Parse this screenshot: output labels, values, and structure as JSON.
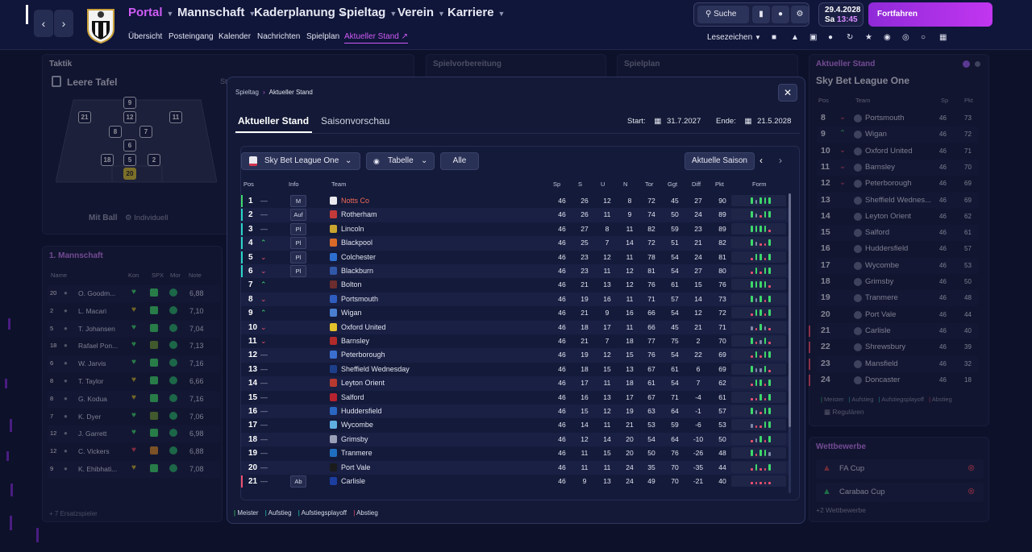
{
  "topbar": {
    "menu": [
      "Portal",
      "Mannschaft",
      "Kaderplanung",
      "Spieltag",
      "Verein",
      "Karriere"
    ],
    "sub": [
      "Übersicht",
      "Posteingang",
      "Kalender",
      "Nachrichten",
      "Spielplan",
      "Aktueller Stand"
    ],
    "search": "Suche",
    "date": "29.4.2028",
    "day": "Sa",
    "time": "13:45",
    "continue": "Fortfahren",
    "bookmarks": "Lesezeichen",
    "icons": [
      "chat-icon",
      "shirt-icon",
      "clipboard-icon",
      "team-icon",
      "refresh-icon",
      "trophy-icon",
      "pawprint-icon",
      "target-icon",
      "football-icon",
      "calendar-grid-icon"
    ]
  },
  "tactics": {
    "header": "Taktik",
    "subtitle": "Leere Tafel",
    "st": "St",
    "ball": "Mit Ball",
    "style": "Individuell",
    "formation": [
      "9",
      "21",
      "12",
      "11",
      "8",
      "7",
      "6",
      "18",
      "5",
      "2",
      "20"
    ]
  },
  "prep": {
    "header": "Spielvorbereitung"
  },
  "schedule": {
    "header": "Spielplan"
  },
  "squad": {
    "header": "1. Mannschaft",
    "cols": [
      "Name",
      "Kon",
      "SPX",
      "Mor",
      "Note"
    ],
    "more": "+ 7 Ersatzspieler",
    "players": [
      {
        "no": "20",
        "name": "O. Goodm...",
        "rating": "6,88"
      },
      {
        "no": "2",
        "name": "L. Macari",
        "rating": "7,10"
      },
      {
        "no": "5",
        "name": "T. Johansen",
        "rating": "7,04"
      },
      {
        "no": "18",
        "name": "Rafael Pon...",
        "rating": "7,13"
      },
      {
        "no": "6",
        "name": "W. Jarvis",
        "rating": "7,16"
      },
      {
        "no": "8",
        "name": "T. Taylor",
        "rating": "6,66"
      },
      {
        "no": "8",
        "name": "G. Kodua",
        "rating": "7,16"
      },
      {
        "no": "7",
        "name": "K. Dyer",
        "rating": "7,06"
      },
      {
        "no": "12",
        "name": "J. Garrett",
        "rating": "6,98"
      },
      {
        "no": "12",
        "name": "C. Vickers",
        "rating": "6,88"
      },
      {
        "no": "9",
        "name": "K. Ehibhati...",
        "rating": "7,08"
      }
    ]
  },
  "modal": {
    "breadcrumb": [
      "Spieltag",
      "Aktueller Stand"
    ],
    "tabs": [
      "Aktueller Stand",
      "Saisonvorschau"
    ],
    "start_label": "Start:",
    "start": "31.7.2027",
    "end_label": "Ende:",
    "end": "21.5.2028",
    "league": "Sky Bet League One",
    "view": "Tabelle",
    "filter": "Alle",
    "season": "Aktuelle Saison",
    "cols": [
      "Pos",
      "Info",
      "Team",
      "Sp",
      "S",
      "U",
      "N",
      "Tor",
      "Ggt",
      "Diff",
      "Pkt",
      "Form"
    ],
    "legend": [
      "Meister",
      "Aufstieg",
      "Aufstiegsplayoff",
      "Abstieg"
    ]
  },
  "table": [
    {
      "pos": "1",
      "info": "M",
      "team": "Notts Co",
      "sp": "46",
      "s": "26",
      "u": "12",
      "n": "8",
      "tor": "72",
      "ggt": "45",
      "diff": "27",
      "pkt": "90",
      "trend": "same",
      "zone": "meister",
      "form": "WDWWW"
    },
    {
      "pos": "2",
      "info": "Auf",
      "team": "Rotherham",
      "sp": "46",
      "s": "26",
      "u": "11",
      "n": "9",
      "tor": "74",
      "ggt": "50",
      "diff": "24",
      "pkt": "89",
      "trend": "same",
      "zone": "aufstieg",
      "form": "WDLWW"
    },
    {
      "pos": "3",
      "info": "Pl",
      "team": "Lincoln",
      "sp": "46",
      "s": "27",
      "u": "8",
      "n": "11",
      "tor": "82",
      "ggt": "59",
      "diff": "23",
      "pkt": "89",
      "trend": "same",
      "zone": "playoff",
      "form": "WWWWL"
    },
    {
      "pos": "4",
      "info": "Pl",
      "team": "Blackpool",
      "sp": "46",
      "s": "25",
      "u": "7",
      "n": "14",
      "tor": "72",
      "ggt": "51",
      "diff": "21",
      "pkt": "82",
      "trend": "up",
      "zone": "playoff",
      "form": "WDLLW"
    },
    {
      "pos": "5",
      "info": "Pl",
      "team": "Colchester",
      "sp": "46",
      "s": "23",
      "u": "12",
      "n": "11",
      "tor": "78",
      "ggt": "54",
      "diff": "24",
      "pkt": "81",
      "trend": "down",
      "zone": "playoff",
      "form": "LWWLW"
    },
    {
      "pos": "6",
      "info": "Pl",
      "team": "Blackburn",
      "sp": "46",
      "s": "23",
      "u": "11",
      "n": "12",
      "tor": "81",
      "ggt": "54",
      "diff": "27",
      "pkt": "80",
      "trend": "down",
      "zone": "playoff",
      "form": "LWLWW"
    },
    {
      "pos": "7",
      "info": "",
      "team": "Bolton",
      "sp": "46",
      "s": "21",
      "u": "13",
      "n": "12",
      "tor": "76",
      "ggt": "61",
      "diff": "15",
      "pkt": "76",
      "trend": "up",
      "zone": "",
      "form": "WWWWL"
    },
    {
      "pos": "8",
      "info": "",
      "team": "Portsmouth",
      "sp": "46",
      "s": "19",
      "u": "16",
      "n": "11",
      "tor": "71",
      "ggt": "57",
      "diff": "14",
      "pkt": "73",
      "trend": "down",
      "zone": "",
      "form": "WDWLW"
    },
    {
      "pos": "9",
      "info": "",
      "team": "Wigan",
      "sp": "46",
      "s": "21",
      "u": "9",
      "n": "16",
      "tor": "66",
      "ggt": "54",
      "diff": "12",
      "pkt": "72",
      "trend": "up",
      "zone": "",
      "form": "LWWLW"
    },
    {
      "pos": "10",
      "info": "",
      "team": "Oxford United",
      "sp": "46",
      "s": "18",
      "u": "17",
      "n": "11",
      "tor": "66",
      "ggt": "45",
      "diff": "21",
      "pkt": "71",
      "trend": "down",
      "zone": "",
      "form": "DLWDL"
    },
    {
      "pos": "11",
      "info": "",
      "team": "Barnsley",
      "sp": "46",
      "s": "21",
      "u": "7",
      "n": "18",
      "tor": "77",
      "ggt": "75",
      "diff": "2",
      "pkt": "70",
      "trend": "down",
      "zone": "",
      "form": "WLDWL"
    },
    {
      "pos": "12",
      "info": "",
      "team": "Peterborough",
      "sp": "46",
      "s": "19",
      "u": "12",
      "n": "15",
      "tor": "76",
      "ggt": "54",
      "diff": "22",
      "pkt": "69",
      "trend": "same",
      "zone": "",
      "form": "LWLWW"
    },
    {
      "pos": "13",
      "info": "",
      "team": "Sheffield Wednesday",
      "sp": "46",
      "s": "18",
      "u": "15",
      "n": "13",
      "tor": "67",
      "ggt": "61",
      "diff": "6",
      "pkt": "69",
      "trend": "same",
      "zone": "",
      "form": "WDDWL"
    },
    {
      "pos": "14",
      "info": "",
      "team": "Leyton Orient",
      "sp": "46",
      "s": "17",
      "u": "11",
      "n": "18",
      "tor": "61",
      "ggt": "54",
      "diff": "7",
      "pkt": "62",
      "trend": "same",
      "zone": "",
      "form": "LWWLW"
    },
    {
      "pos": "15",
      "info": "",
      "team": "Salford",
      "sp": "46",
      "s": "16",
      "u": "13",
      "n": "17",
      "tor": "67",
      "ggt": "71",
      "diff": "-4",
      "pkt": "61",
      "trend": "same",
      "zone": "",
      "form": "LLWLW"
    },
    {
      "pos": "16",
      "info": "",
      "team": "Huddersfield",
      "sp": "46",
      "s": "15",
      "u": "12",
      "n": "19",
      "tor": "63",
      "ggt": "64",
      "diff": "-1",
      "pkt": "57",
      "trend": "same",
      "zone": "",
      "form": "WDLWW"
    },
    {
      "pos": "17",
      "info": "",
      "team": "Wycombe",
      "sp": "46",
      "s": "14",
      "u": "11",
      "n": "21",
      "tor": "53",
      "ggt": "59",
      "diff": "-6",
      "pkt": "53",
      "trend": "same",
      "zone": "",
      "form": "DLLWW"
    },
    {
      "pos": "18",
      "info": "",
      "team": "Grimsby",
      "sp": "46",
      "s": "12",
      "u": "14",
      "n": "20",
      "tor": "54",
      "ggt": "64",
      "diff": "-10",
      "pkt": "50",
      "trend": "same",
      "zone": "",
      "form": "LDWLW"
    },
    {
      "pos": "19",
      "info": "",
      "team": "Tranmere",
      "sp": "46",
      "s": "11",
      "u": "15",
      "n": "20",
      "tor": "50",
      "ggt": "76",
      "diff": "-26",
      "pkt": "48",
      "trend": "same",
      "zone": "",
      "form": "WLWWD"
    },
    {
      "pos": "20",
      "info": "",
      "team": "Port Vale",
      "sp": "46",
      "s": "11",
      "u": "11",
      "n": "24",
      "tor": "35",
      "ggt": "70",
      "diff": "-35",
      "pkt": "44",
      "trend": "same",
      "zone": "",
      "form": "LWLLW"
    },
    {
      "pos": "21",
      "info": "Ab",
      "team": "Carlisle",
      "sp": "46",
      "s": "9",
      "u": "13",
      "n": "24",
      "tor": "49",
      "ggt": "70",
      "diff": "-21",
      "pkt": "40",
      "trend": "same",
      "zone": "abstieg",
      "form": "LLLLL"
    }
  ],
  "right": {
    "header": "Aktueller Stand",
    "league": "Sky Bet League One",
    "cols": [
      "Pos",
      "Team",
      "Sp",
      "Pkt"
    ],
    "legend": [
      "Meister",
      "Aufstieg",
      "Aufstiegsplayoff",
      "Abstieg"
    ],
    "regular": "Regulären",
    "rows": [
      {
        "pos": "8",
        "team": "Portsmouth",
        "sp": "46",
        "pkt": "73"
      },
      {
        "pos": "9",
        "team": "Wigan",
        "sp": "46",
        "pkt": "72"
      },
      {
        "pos": "10",
        "team": "Oxford United",
        "sp": "46",
        "pkt": "71"
      },
      {
        "pos": "11",
        "team": "Barnsley",
        "sp": "46",
        "pkt": "70"
      },
      {
        "pos": "12",
        "team": "Peterborough",
        "sp": "46",
        "pkt": "69"
      },
      {
        "pos": "13",
        "team": "Sheffield Wednes...",
        "sp": "46",
        "pkt": "69"
      },
      {
        "pos": "14",
        "team": "Leyton Orient",
        "sp": "46",
        "pkt": "62"
      },
      {
        "pos": "15",
        "team": "Salford",
        "sp": "46",
        "pkt": "61"
      },
      {
        "pos": "16",
        "team": "Huddersfield",
        "sp": "46",
        "pkt": "57"
      },
      {
        "pos": "17",
        "team": "Wycombe",
        "sp": "46",
        "pkt": "53"
      },
      {
        "pos": "18",
        "team": "Grimsby",
        "sp": "46",
        "pkt": "50"
      },
      {
        "pos": "19",
        "team": "Tranmere",
        "sp": "46",
        "pkt": "48"
      },
      {
        "pos": "20",
        "team": "Port Vale",
        "sp": "46",
        "pkt": "44"
      },
      {
        "pos": "21",
        "team": "Carlisle",
        "sp": "46",
        "pkt": "40"
      },
      {
        "pos": "22",
        "team": "Shrewsbury",
        "sp": "46",
        "pkt": "39"
      },
      {
        "pos": "23",
        "team": "Mansfield",
        "sp": "46",
        "pkt": "32"
      },
      {
        "pos": "24",
        "team": "Doncaster",
        "sp": "46",
        "pkt": "18"
      }
    ]
  },
  "competitions": {
    "header": "Wettbewerbe",
    "items": [
      "FA Cup",
      "Carabao Cup"
    ],
    "more": "+2 Wettbewerbe"
  },
  "colors": {
    "accent": "#c236f0",
    "win": "#3ed96b",
    "loss": "#f0506e",
    "draw": "#7f8aa8",
    "meister": "#3ed96b",
    "aufstieg": "#2ad4c8",
    "playoff": "#2ad4c8",
    "abstieg": "#f0506e",
    "up": "#3ed96b",
    "down": "#f0506e"
  }
}
